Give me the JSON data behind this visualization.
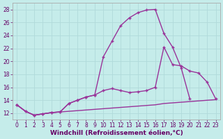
{
  "title": "",
  "xlabel": "Windchill (Refroidissement éolien,°C)",
  "ylabel": "",
  "xlim": [
    -0.5,
    23.5
  ],
  "ylim": [
    11.0,
    29.0
  ],
  "xticks": [
    0,
    1,
    2,
    3,
    4,
    5,
    6,
    7,
    8,
    9,
    10,
    11,
    12,
    13,
    14,
    15,
    16,
    17,
    18,
    19,
    20,
    21,
    22,
    23
  ],
  "yticks": [
    12,
    14,
    16,
    18,
    20,
    22,
    24,
    26,
    28
  ],
  "background_color": "#c5ecea",
  "grid_color": "#b0dada",
  "line_color": "#993399",
  "lines": [
    {
      "x": [
        0,
        1,
        2,
        3,
        4,
        5,
        6,
        7,
        8,
        9,
        10,
        11,
        12,
        13,
        14,
        15,
        16,
        17,
        18,
        19,
        20,
        21,
        22,
        23
      ],
      "y": [
        13.3,
        12.3,
        11.7,
        11.9,
        12.1,
        12.2,
        12.3,
        12.4,
        12.5,
        12.6,
        12.7,
        12.8,
        12.9,
        13.0,
        13.1,
        13.2,
        13.3,
        13.5,
        13.6,
        13.7,
        13.8,
        13.9,
        14.0,
        14.1
      ],
      "marker": false,
      "linewidth": 1.0
    },
    {
      "x": [
        0,
        1,
        2,
        3,
        4,
        5,
        6,
        7,
        8,
        9,
        10,
        11,
        12,
        13,
        14,
        15,
        16,
        17,
        18,
        19,
        20
      ],
      "y": [
        13.3,
        12.3,
        11.7,
        11.9,
        12.1,
        12.2,
        13.5,
        14.0,
        14.5,
        14.8,
        20.7,
        23.1,
        25.5,
        26.7,
        27.5,
        27.9,
        28.0,
        24.3,
        22.2,
        19.0,
        14.2
      ],
      "marker": true,
      "linewidth": 1.0
    },
    {
      "x": [
        0,
        1,
        2,
        3,
        4,
        5,
        6,
        7,
        8,
        9,
        10,
        11,
        12,
        13,
        14,
        15,
        16,
        17,
        18,
        19,
        20,
        21,
        22,
        23
      ],
      "y": [
        13.3,
        12.3,
        11.7,
        11.9,
        12.1,
        12.2,
        13.5,
        14.0,
        14.5,
        14.8,
        15.5,
        15.8,
        15.5,
        15.2,
        15.3,
        15.5,
        16.0,
        22.2,
        19.5,
        19.3,
        18.5,
        18.2,
        16.8,
        14.2
      ],
      "marker": true,
      "linewidth": 1.0
    }
  ],
  "font_color": "#660066",
  "tick_fontsize": 5.5,
  "xlabel_fontsize": 6.5
}
